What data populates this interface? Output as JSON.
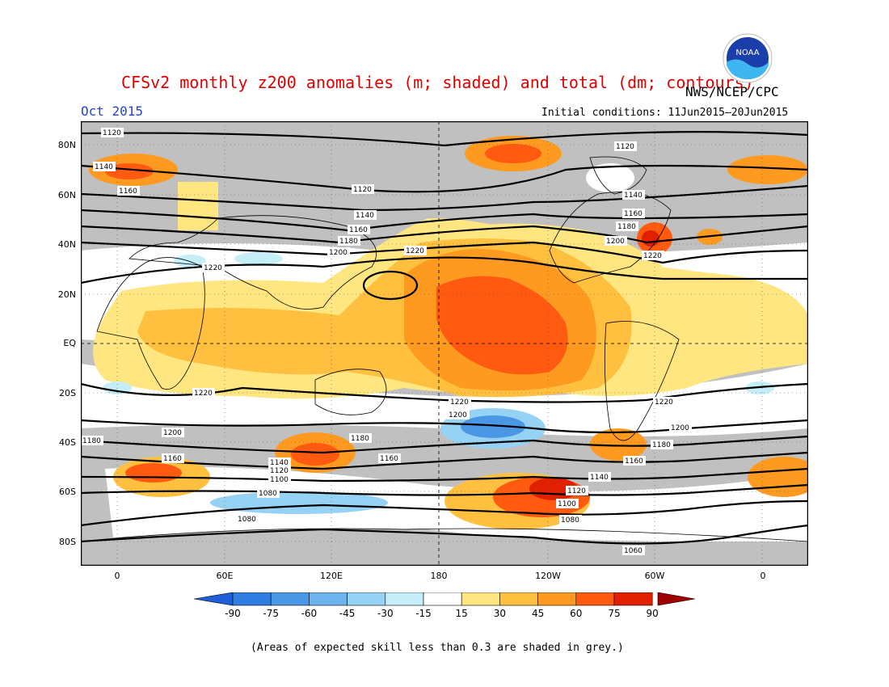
{
  "title": "CFSv2 monthly z200 anomalies (m; shaded) and total (dm; contours)",
  "valid_month": "Oct 2015",
  "agency": "NWS/NCEP/CPC",
  "initial_conditions": "Initial conditions: 11Jun2015–20Jun2015",
  "logo_text": "NOAA",
  "lat_labels": [
    "80N",
    "60N",
    "40N",
    "20N",
    "EQ",
    "20S",
    "40S",
    "60S",
    "80S"
  ],
  "lon_labels": [
    "0",
    "60E",
    "120E",
    "180",
    "120W",
    "60W",
    "0"
  ],
  "colorbar": {
    "ticks": [
      "-90",
      "-75",
      "-60",
      "-45",
      "-30",
      "-15",
      "15",
      "30",
      "45",
      "60",
      "75",
      "90"
    ],
    "colors": [
      "#1e5fd8",
      "#2f7de0",
      "#4a97e6",
      "#6db3ee",
      "#96d2f4",
      "#c4eef8",
      "#ffffff",
      "#ffe680",
      "#ffc040",
      "#ff9a20",
      "#ff5a10",
      "#e02000",
      "#a00000"
    ]
  },
  "contour_labels": [
    "1120",
    "1140",
    "1160",
    "1180",
    "1200",
    "1220",
    "1100",
    "1080",
    "1060"
  ],
  "footnote": "(Areas of expected skill less than 0.3 are shaded in grey.)",
  "colors": {
    "title": "#e00000",
    "month": "#2244dd",
    "grey_skill": "#c0c0c0"
  }
}
